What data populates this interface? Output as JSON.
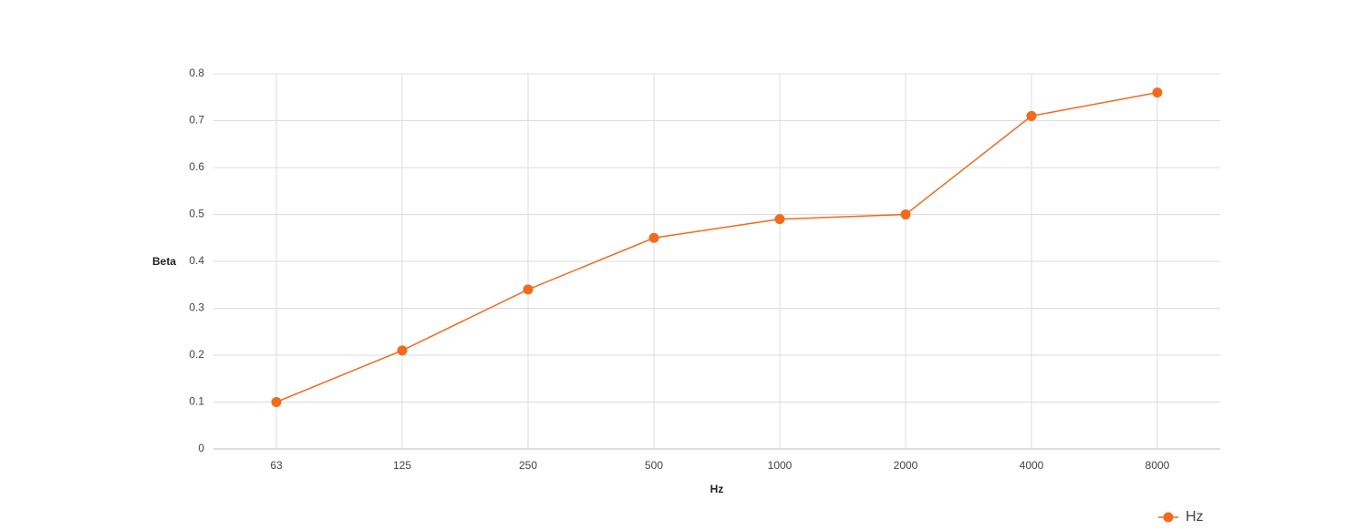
{
  "chart_data": {
    "type": "line",
    "x_label": "Hz",
    "y_label": "Beta",
    "categories": [
      "63",
      "125",
      "250",
      "500",
      "1000",
      "2000",
      "4000",
      "8000"
    ],
    "series": [
      {
        "name": "Hz",
        "color": "#f26b1d",
        "values": [
          0.1,
          0.21,
          0.34,
          0.45,
          0.49,
          0.5,
          0.71,
          0.76
        ]
      }
    ],
    "ylim": [
      0,
      0.8
    ],
    "yticks": [
      0,
      0.1,
      0.2,
      0.3,
      0.4,
      0.5,
      0.6,
      0.7,
      0.8
    ],
    "grid": true,
    "legend": "bottom-right"
  }
}
